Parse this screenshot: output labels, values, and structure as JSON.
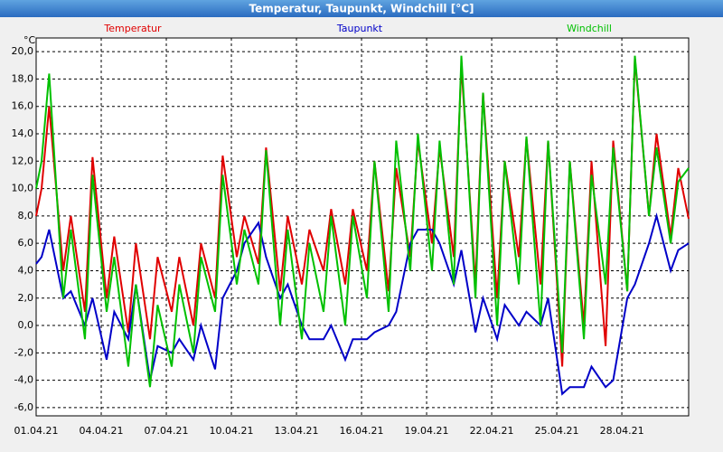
{
  "chart_data": {
    "type": "line",
    "title": "Temperatur, Taupunkt, Windchill [°C]",
    "y_label": "°C",
    "x": [
      0,
      0.25,
      0.6,
      1.25,
      1.6,
      2.25,
      2.6,
      3.25,
      3.6,
      4.25,
      4.6,
      5.25,
      5.6,
      6.25,
      6.6,
      7.25,
      7.6,
      8.25,
      8.6,
      9.25,
      9.6,
      10.25,
      10.6,
      11.25,
      11.6,
      12.25,
      12.6,
      13.25,
      13.6,
      14.25,
      14.6,
      15.25,
      15.6,
      16.25,
      16.6,
      17.25,
      17.6,
      18.25,
      18.6,
      19.25,
      19.6,
      20.25,
      20.6,
      21.25,
      21.6,
      22.25,
      22.6,
      23.25,
      23.6,
      24.25,
      24.6,
      25.25,
      25.6,
      26.25,
      26.6,
      27.25,
      27.6,
      28.25,
      28.6,
      29.25,
      29.6,
      30.08
    ],
    "series": [
      {
        "name": "Temperatur",
        "color": "#e00000",
        "values": [
          8,
          10,
          16,
          4,
          8,
          1,
          12.3,
          2,
          6.5,
          -0.5,
          6,
          -1,
          5,
          1,
          5,
          0,
          6,
          2,
          12.4,
          5,
          8,
          4.5,
          13,
          2.5,
          8,
          3,
          7,
          4,
          8.5,
          3,
          8.5,
          4,
          12,
          2.5,
          11.5,
          5,
          13.5,
          6,
          13,
          5,
          19,
          3,
          17,
          2,
          12,
          5,
          13.7,
          3,
          13.5,
          -3,
          12,
          0,
          12,
          -1.5,
          13.5,
          2.5,
          19.5,
          8,
          14,
          6.5,
          11.5,
          7.8
        ]
      },
      {
        "name": "Taupunkt",
        "color": "#0000c8",
        "values": [
          4.5,
          5,
          7,
          2,
          2.5,
          0,
          2,
          -2.5,
          1,
          -1,
          3,
          -4,
          -1.5,
          -2,
          -1,
          -2.5,
          0,
          -3.2,
          2,
          4,
          6,
          7.5,
          5,
          2,
          3,
          0,
          -1,
          -1,
          0,
          -2.5,
          -1,
          -1,
          -0.5,
          0,
          1,
          6,
          7,
          7,
          6,
          3,
          5.5,
          -0.5,
          2,
          -1,
          1.5,
          0,
          1,
          0,
          2,
          -5,
          -4.5,
          -4.5,
          -3,
          -4.5,
          -4,
          2,
          3,
          6,
          8,
          4,
          5.5,
          6
        ]
      },
      {
        "name": "Windchill",
        "color": "#00c000",
        "values": [
          10,
          12,
          18.4,
          2,
          7,
          -1,
          11,
          1,
          5,
          -3,
          3,
          -4.5,
          1.5,
          -3,
          3,
          -2,
          5,
          1,
          11,
          3,
          7,
          3,
          12.8,
          0,
          7,
          -1,
          6,
          1,
          8,
          0,
          8,
          2,
          12,
          1,
          13.5,
          4,
          14,
          4,
          13.5,
          3,
          19.7,
          2,
          17,
          0,
          12,
          3,
          13.8,
          0,
          13.5,
          -2,
          12,
          -1,
          11,
          3,
          13,
          2.5,
          19.7,
          8,
          13,
          6,
          10.5,
          11.5
        ]
      }
    ],
    "xlim": [
      0,
      30.08
    ],
    "xticks": [
      {
        "value": 0,
        "label": "01.04.21"
      },
      {
        "value": 3,
        "label": "04.04.21"
      },
      {
        "value": 6,
        "label": "07.04.21"
      },
      {
        "value": 9,
        "label": "10.04.21"
      },
      {
        "value": 12,
        "label": "13.04.21"
      },
      {
        "value": 15,
        "label": "16.04.21"
      },
      {
        "value": 18,
        "label": "19.04.21"
      },
      {
        "value": 21,
        "label": "22.04.21"
      },
      {
        "value": 24,
        "label": "25.04.21"
      },
      {
        "value": 27,
        "label": "28.04.21"
      }
    ],
    "ylim": [
      -6.6,
      21
    ],
    "yticks": [
      {
        "value": -6,
        "label": "-6,0"
      },
      {
        "value": -4,
        "label": "-4,0"
      },
      {
        "value": -2,
        "label": "-2,0"
      },
      {
        "value": 0,
        "label": "0,0"
      },
      {
        "value": 2,
        "label": "2,0"
      },
      {
        "value": 4,
        "label": "4,0"
      },
      {
        "value": 6,
        "label": "6,0"
      },
      {
        "value": 8,
        "label": "8,0"
      },
      {
        "value": 10,
        "label": "10,0"
      },
      {
        "value": 12,
        "label": "12,0"
      },
      {
        "value": 14,
        "label": "14,0"
      },
      {
        "value": 16,
        "label": "16,0"
      },
      {
        "value": 18,
        "label": "18,0"
      },
      {
        "value": 20,
        "label": "20,0"
      }
    ],
    "grid": true
  }
}
